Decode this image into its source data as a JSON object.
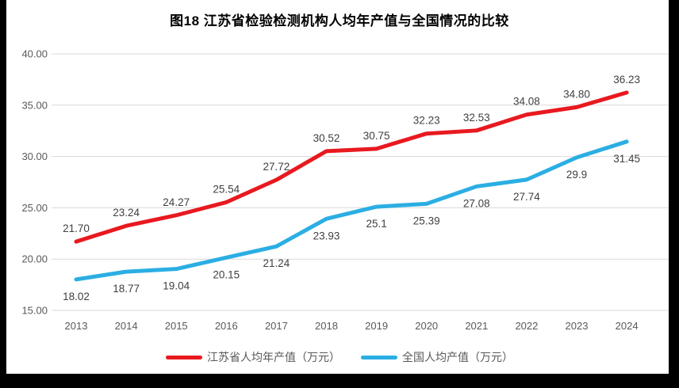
{
  "title": "图18  江苏省检验检测机构人均年产值与全国情况的比较",
  "chart_data": {
    "type": "line",
    "categories": [
      "2013",
      "2014",
      "2015",
      "2016",
      "2017",
      "2018",
      "2019",
      "2020",
      "2021",
      "2022",
      "2023",
      "2024"
    ],
    "series": [
      {
        "name": "江苏省人均年产值（万元）",
        "color": "#E8191F",
        "values": [
          21.7,
          23.24,
          24.27,
          25.54,
          27.72,
          30.52,
          30.75,
          32.23,
          32.53,
          34.08,
          34.8,
          36.23
        ],
        "labels": [
          "21.70",
          "23.24",
          "24.27",
          "25.54",
          "27.72",
          "30.52",
          "30.75",
          "32.23",
          "32.53",
          "34.08",
          "34.80",
          "36.23"
        ],
        "label_position": "above"
      },
      {
        "name": "全国人均产值（万元）",
        "color": "#2BAEE3",
        "values": [
          18.02,
          18.77,
          19.04,
          20.15,
          21.24,
          23.93,
          25.1,
          25.39,
          27.08,
          27.74,
          29.9,
          31.45
        ],
        "labels": [
          "18.02",
          "18.77",
          "19.04",
          "20.15",
          "21.24",
          "23.93",
          "25.1",
          "25.39",
          "27.08",
          "27.74",
          "29.9",
          "31.45"
        ],
        "label_position": "below"
      }
    ],
    "xlabel": "",
    "ylabel": "",
    "ylim": [
      15,
      40
    ],
    "yticks": [
      15,
      20,
      25,
      30,
      35,
      40
    ],
    "ytick_labels": [
      "15.00",
      "20.00",
      "25.00",
      "30.00",
      "35.00",
      "40.00"
    ],
    "grid": true,
    "legend_position": "bottom"
  },
  "colors": {
    "gridline": "#D9D9D9",
    "axis_text": "#595959",
    "data_label_text": "#404040",
    "title_text": "#000000",
    "border": "#000000"
  }
}
